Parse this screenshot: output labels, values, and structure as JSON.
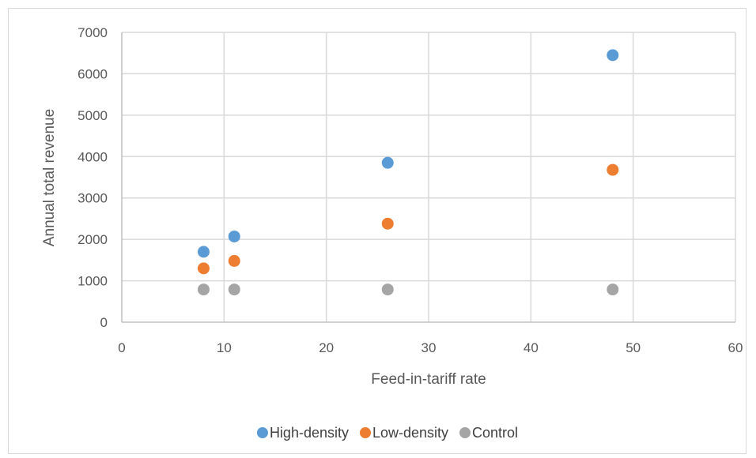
{
  "chart_data": {
    "type": "scatter",
    "title": "",
    "xlabel": "Feed-in-tariff rate",
    "ylabel": "Annual total revenue",
    "xlim": [
      0,
      60
    ],
    "ylim": [
      0,
      7000
    ],
    "x_ticks": [
      0,
      10,
      20,
      30,
      40,
      50,
      60
    ],
    "y_ticks": [
      0,
      1000,
      2000,
      3000,
      4000,
      5000,
      6000,
      7000
    ],
    "grid": true,
    "legend_position": "bottom",
    "series": [
      {
        "name": "High-density",
        "color": "#5b9bd5",
        "points": [
          {
            "x": 8,
            "y": 1700
          },
          {
            "x": 11,
            "y": 2070
          },
          {
            "x": 26,
            "y": 3850
          },
          {
            "x": 48,
            "y": 6450
          }
        ]
      },
      {
        "name": "Low-density",
        "color": "#ed7d31",
        "points": [
          {
            "x": 8,
            "y": 1300
          },
          {
            "x": 11,
            "y": 1480
          },
          {
            "x": 26,
            "y": 2380
          },
          {
            "x": 48,
            "y": 3680
          }
        ]
      },
      {
        "name": "Control",
        "color": "#a5a5a5",
        "points": [
          {
            "x": 8,
            "y": 790
          },
          {
            "x": 11,
            "y": 790
          },
          {
            "x": 26,
            "y": 790
          },
          {
            "x": 48,
            "y": 790
          }
        ]
      }
    ]
  }
}
